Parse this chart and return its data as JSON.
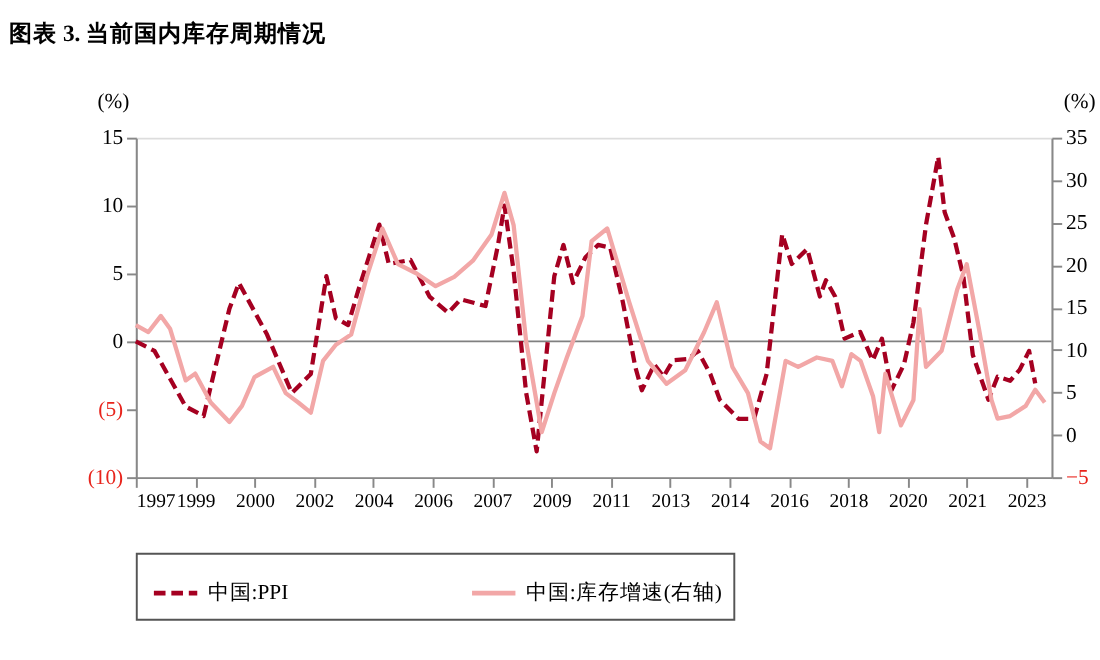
{
  "chart_data": {
    "type": "line",
    "title": "图表 3. 当前国内库存周期情况",
    "ylabel": "(%)",
    "y2label": "(%)",
    "xlim": [
      1997,
      2024
    ],
    "xticks": [
      {
        "value": 1997,
        "label": "1997"
      },
      {
        "value": 1998.75,
        "label": "1999"
      },
      {
        "value": 2000.5,
        "label": "2000"
      },
      {
        "value": 2002.25,
        "label": "2002"
      },
      {
        "value": 2004,
        "label": "2004"
      },
      {
        "value": 2005.75,
        "label": "2006"
      },
      {
        "value": 2007.5,
        "label": "2007"
      },
      {
        "value": 2009.25,
        "label": "2009"
      },
      {
        "value": 2011,
        "label": "2011"
      },
      {
        "value": 2012.75,
        "label": "2013"
      },
      {
        "value": 2014.5,
        "label": "2014"
      },
      {
        "value": 2016.25,
        "label": "2016"
      },
      {
        "value": 2018,
        "label": "2018"
      },
      {
        "value": 2019.75,
        "label": "2020"
      },
      {
        "value": 2021.5,
        "label": "2021"
      },
      {
        "value": 2023.25,
        "label": "2023"
      }
    ],
    "ylim": [
      -10,
      15
    ],
    "yticks": [
      {
        "value": -10,
        "label": "(10)"
      },
      {
        "value": -5,
        "label": "(5)"
      },
      0,
      5,
      10,
      15
    ],
    "y2lim": [
      -5,
      35
    ],
    "y2ticks": [
      -5,
      0,
      5,
      10,
      15,
      20,
      25,
      30,
      35
    ],
    "grid": false,
    "legend": "bottom",
    "ref_lines": [
      {
        "axis": "y",
        "value": 0,
        "color": "#808080"
      }
    ],
    "series": [
      {
        "name": "中国:PPI",
        "color": "#a50021",
        "line_style": "dashed",
        "x": [
          1997.0,
          1997.55,
          1998.47,
          1999.0,
          1999.76,
          2000.04,
          2000.87,
          2001.6,
          2002.16,
          2002.62,
          2002.9,
          2003.26,
          2003.54,
          2004.18,
          2004.46,
          2005.1,
          2005.66,
          2006.21,
          2006.58,
          2007.31,
          2007.68,
          2007.87,
          2008.14,
          2008.51,
          2008.82,
          2009.34,
          2009.61,
          2009.89,
          2010.26,
          2010.63,
          2010.99,
          2011.36,
          2011.73,
          2011.92,
          2012.29,
          2012.56,
          2012.84,
          2013.3,
          2013.57,
          2013.94,
          2014.22,
          2014.77,
          2015.23,
          2015.6,
          2016.06,
          2016.34,
          2016.8,
          2017.17,
          2017.35,
          2017.62,
          2017.9,
          2018.36,
          2018.73,
          2019.0,
          2019.28,
          2019.65,
          2019.93,
          2020.3,
          2020.66,
          2020.85,
          2021.13,
          2021.4,
          2021.68,
          2022.14,
          2022.41,
          2022.78,
          2023.06,
          2023.34,
          2023.52
        ],
        "values": [
          0,
          -0.7,
          -4.8,
          -5.5,
          2.4,
          4.3,
          0.5,
          -3.8,
          -2.4,
          4.8,
          1.7,
          1.2,
          3.6,
          8.6,
          5.7,
          6.0,
          3.3,
          2.1,
          3.1,
          2.6,
          7.1,
          10.0,
          5.2,
          -3.8,
          -8.1,
          4.8,
          7.1,
          4.3,
          6.2,
          7.1,
          6.9,
          2.9,
          -1.9,
          -3.6,
          -1.7,
          -2.6,
          -1.4,
          -1.3,
          -0.7,
          -2.4,
          -4.3,
          -5.7,
          -5.7,
          -2.4,
          7.9,
          5.7,
          6.8,
          3.3,
          4.5,
          3.3,
          0.2,
          0.7,
          -1.4,
          0.2,
          -3.6,
          -1.7,
          1.4,
          8.6,
          13.6,
          9.5,
          7.6,
          4.8,
          -1.0,
          -4.3,
          -2.6,
          -2.9,
          -2.1,
          -0.7,
          -3.1
        ]
      },
      {
        "name": "中国:库存增速(右轴)",
        "color": "#f2a7a7",
        "line_style": "solid",
        "axis": "y2",
        "x": [
          1997.0,
          1997.37,
          1997.74,
          1998.01,
          1998.47,
          1998.75,
          1999.21,
          1999.76,
          2000.13,
          2000.5,
          2001.05,
          2001.42,
          2001.79,
          2002.16,
          2002.52,
          2002.9,
          2003.35,
          2003.81,
          2004.27,
          2004.73,
          2005.28,
          2005.84,
          2006.39,
          2006.94,
          2007.49,
          2007.87,
          2008.14,
          2008.51,
          2008.97,
          2009.34,
          2009.71,
          2010.17,
          2010.44,
          2010.9,
          2011.55,
          2012.1,
          2012.65,
          2013.2,
          2013.76,
          2014.13,
          2014.59,
          2015.05,
          2015.42,
          2015.7,
          2016.16,
          2016.53,
          2017.08,
          2017.54,
          2017.82,
          2018.1,
          2018.37,
          2018.74,
          2018.92,
          2019.1,
          2019.56,
          2019.93,
          2020.11,
          2020.3,
          2020.76,
          2021.22,
          2021.5,
          2021.86,
          2022.23,
          2022.41,
          2022.78,
          2023.24,
          2023.52,
          2023.8
        ],
        "values": [
          12.9,
          12.1,
          14.0,
          12.5,
          6.4,
          7.2,
          3.8,
          1.5,
          3.4,
          6.8,
          8.0,
          4.9,
          3.8,
          2.6,
          8.7,
          10.6,
          11.8,
          18.6,
          24.3,
          20.1,
          19.0,
          17.5,
          18.6,
          20.5,
          23.6,
          28.5,
          24.7,
          11.0,
          0.3,
          4.9,
          9.1,
          14.0,
          22.8,
          24.3,
          15.6,
          8.7,
          6.0,
          7.6,
          12.1,
          15.6,
          8.0,
          4.9,
          -0.8,
          -1.6,
          8.7,
          8.0,
          9.1,
          8.7,
          5.7,
          9.5,
          8.7,
          4.5,
          0.3,
          7.2,
          1.1,
          4.1,
          14.8,
          8.0,
          9.9,
          17.1,
          20.1,
          12.5,
          4.1,
          1.9,
          2.2,
          3.4,
          5.3,
          3.8
        ]
      }
    ]
  }
}
